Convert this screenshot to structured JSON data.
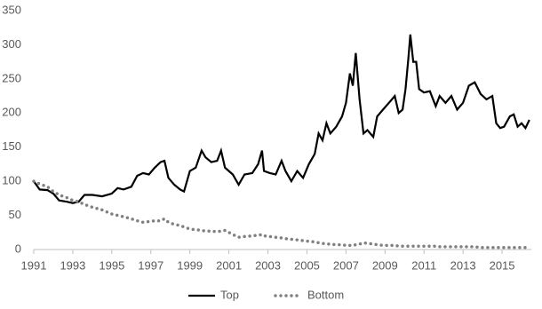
{
  "chart_data": {
    "type": "line",
    "x": [
      1991,
      1991.3,
      1991.7,
      1992,
      1992.3,
      1992.7,
      1993,
      1993.3,
      1993.6,
      1994,
      1994.5,
      1995,
      1995.3,
      1995.6,
      1996,
      1996.3,
      1996.6,
      1996.9,
      1997.2,
      1997.5,
      1997.7,
      1997.9,
      1998.2,
      1998.5,
      1998.7,
      1999,
      1999.3,
      1999.6,
      1999.8,
      2000.1,
      2000.4,
      2000.6,
      2000.8,
      2001.2,
      2001.5,
      2001.8,
      2002.2,
      2002.5,
      2002.7,
      2002.8,
      2003.1,
      2003.4,
      2003.7,
      2003.9,
      2004.2,
      2004.5,
      2004.8,
      2005.1,
      2005.4,
      2005.6,
      2005.8,
      2006,
      2006.2,
      2006.5,
      2006.8,
      2007,
      2007.2,
      2007.35,
      2007.5,
      2007.7,
      2007.9,
      2008.1,
      2008.4,
      2008.6,
      2008.9,
      2009.2,
      2009.5,
      2009.7,
      2009.9,
      2010.05,
      2010.2,
      2010.3,
      2010.45,
      2010.6,
      2010.75,
      2011,
      2011.3,
      2011.6,
      2011.8,
      2012.1,
      2012.4,
      2012.7,
      2013,
      2013.3,
      2013.6,
      2013.9,
      2014.2,
      2014.5,
      2014.7,
      2014.9,
      2015.1,
      2015.4,
      2015.6,
      2015.8,
      2016,
      2016.2,
      2016.4
    ],
    "series": [
      {
        "name": "Top",
        "color": "#000000",
        "style": "solid",
        "values": [
          100,
          88,
          87,
          82,
          72,
          70,
          68,
          70,
          80,
          80,
          78,
          82,
          90,
          88,
          92,
          108,
          112,
          110,
          120,
          128,
          130,
          105,
          95,
          88,
          85,
          115,
          120,
          145,
          135,
          128,
          130,
          145,
          120,
          110,
          95,
          110,
          112,
          125,
          145,
          115,
          112,
          110,
          130,
          115,
          100,
          115,
          105,
          125,
          140,
          170,
          160,
          185,
          170,
          180,
          195,
          215,
          258,
          240,
          288,
          220,
          170,
          175,
          165,
          195,
          205,
          215,
          225,
          200,
          205,
          235,
          280,
          315,
          275,
          275,
          235,
          230,
          232,
          210,
          225,
          215,
          225,
          205,
          215,
          240,
          245,
          228,
          220,
          225,
          185,
          178,
          180,
          195,
          198,
          180,
          185,
          178,
          190
        ]
      },
      {
        "name": "Bottom",
        "color": "#808080",
        "style": "dotted",
        "values": [
          100,
          96,
          92,
          85,
          80,
          76,
          72,
          70,
          66,
          62,
          58,
          52,
          50,
          48,
          45,
          42,
          40,
          41,
          42,
          42,
          45,
          40,
          37,
          35,
          33,
          30,
          29,
          28,
          27,
          27,
          26,
          27,
          28,
          22,
          18,
          19,
          20,
          21,
          22,
          20,
          19,
          18,
          17,
          16,
          15,
          14,
          13,
          12,
          11,
          10,
          9,
          8,
          8,
          7,
          7,
          6,
          6,
          6,
          7,
          8,
          10,
          9,
          8,
          7,
          6,
          6,
          6,
          5,
          5,
          5,
          5,
          5,
          5,
          5,
          5,
          5,
          5,
          5,
          4,
          4,
          4,
          4,
          4,
          4,
          4,
          3,
          3,
          3,
          3,
          3,
          3,
          3,
          3,
          3,
          3,
          3,
          3
        ]
      }
    ],
    "xlim": [
      1991,
      2016.5
    ],
    "xticks": [
      1991,
      1993,
      1995,
      1997,
      1999,
      2001,
      2003,
      2005,
      2007,
      2009,
      2011,
      2013,
      2015
    ],
    "ylim": [
      0,
      350
    ],
    "yticks": [
      0,
      50,
      100,
      150,
      200,
      250,
      300,
      350
    ],
    "grid": false,
    "legend": "bottom"
  }
}
